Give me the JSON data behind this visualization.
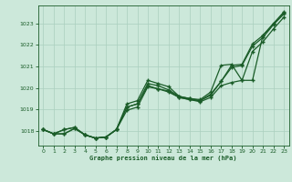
{
  "xlabel": "Graphe pression niveau de la mer (hPa)",
  "bg_color": "#cce8da",
  "grid_color": "#aacfbe",
  "line_color": "#1a5c28",
  "marker": "+",
  "ylim": [
    1017.3,
    1023.85
  ],
  "yticks": [
    1018,
    1019,
    1020,
    1021,
    1022,
    1023
  ],
  "xlim": [
    -0.5,
    23.5
  ],
  "xticks": [
    0,
    1,
    2,
    3,
    4,
    5,
    6,
    7,
    8,
    9,
    10,
    11,
    12,
    13,
    14,
    15,
    16,
    17,
    18,
    19,
    20,
    21,
    22,
    23
  ],
  "line1": [
    1018.05,
    1017.85,
    1017.85,
    1018.1,
    1017.8,
    1017.65,
    1017.7,
    1018.05,
    1018.95,
    1019.1,
    1020.05,
    1019.95,
    1019.8,
    1019.55,
    1019.45,
    1019.35,
    1019.55,
    1020.1,
    1020.25,
    1020.35,
    1021.7,
    1022.15,
    1022.75,
    1023.3
  ],
  "line2": [
    1018.05,
    1017.85,
    1017.85,
    1018.1,
    1017.8,
    1017.65,
    1017.7,
    1018.05,
    1019.1,
    1019.25,
    1020.1,
    1019.95,
    1019.85,
    1019.55,
    1019.45,
    1019.4,
    1019.65,
    1020.3,
    1020.95,
    1021.05,
    1021.95,
    1022.35,
    1022.95,
    1023.45
  ],
  "line3": [
    1018.05,
    1017.85,
    1018.05,
    1018.15,
    1017.8,
    1017.65,
    1017.7,
    1018.05,
    1019.1,
    1019.25,
    1020.2,
    1020.1,
    1019.9,
    1019.6,
    1019.5,
    1019.4,
    1019.7,
    1020.3,
    1021.05,
    1021.1,
    1022.05,
    1022.45,
    1023.0,
    1023.5
  ],
  "line4": [
    1018.05,
    1017.85,
    1018.05,
    1018.15,
    1017.8,
    1017.65,
    1017.7,
    1018.05,
    1019.25,
    1019.4,
    1020.35,
    1020.2,
    1020.05,
    1019.6,
    1019.5,
    1019.45,
    1019.8,
    1021.05,
    1021.1,
    1020.35,
    1020.35,
    1022.45,
    1023.0,
    1023.55
  ]
}
